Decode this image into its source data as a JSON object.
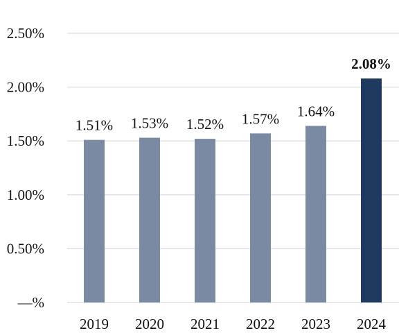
{
  "chart_data": {
    "type": "bar",
    "title": "",
    "xlabel": "",
    "ylabel": "",
    "categories": [
      "2019",
      "2020",
      "2021",
      "2022",
      "2023",
      "2024"
    ],
    "values": [
      1.51,
      1.53,
      1.52,
      1.57,
      1.64,
      2.08
    ],
    "data_labels": [
      "1.51%",
      "1.53%",
      "1.52%",
      "1.57%",
      "1.64%",
      "2.08%"
    ],
    "highlight_index": 5,
    "ylim": [
      0,
      2.5
    ],
    "yticks": [
      0,
      0.5,
      1.0,
      1.5,
      2.0,
      2.5
    ],
    "ytick_labels": [
      "—%",
      "0.50%",
      "1.00%",
      "1.50%",
      "2.00%",
      "2.50%"
    ],
    "grid": true,
    "legend": "none",
    "colors": {
      "bar": "#7a8aa2",
      "highlight": "#1f3a60",
      "grid": "#e3e3e3",
      "text": "#111111"
    }
  }
}
